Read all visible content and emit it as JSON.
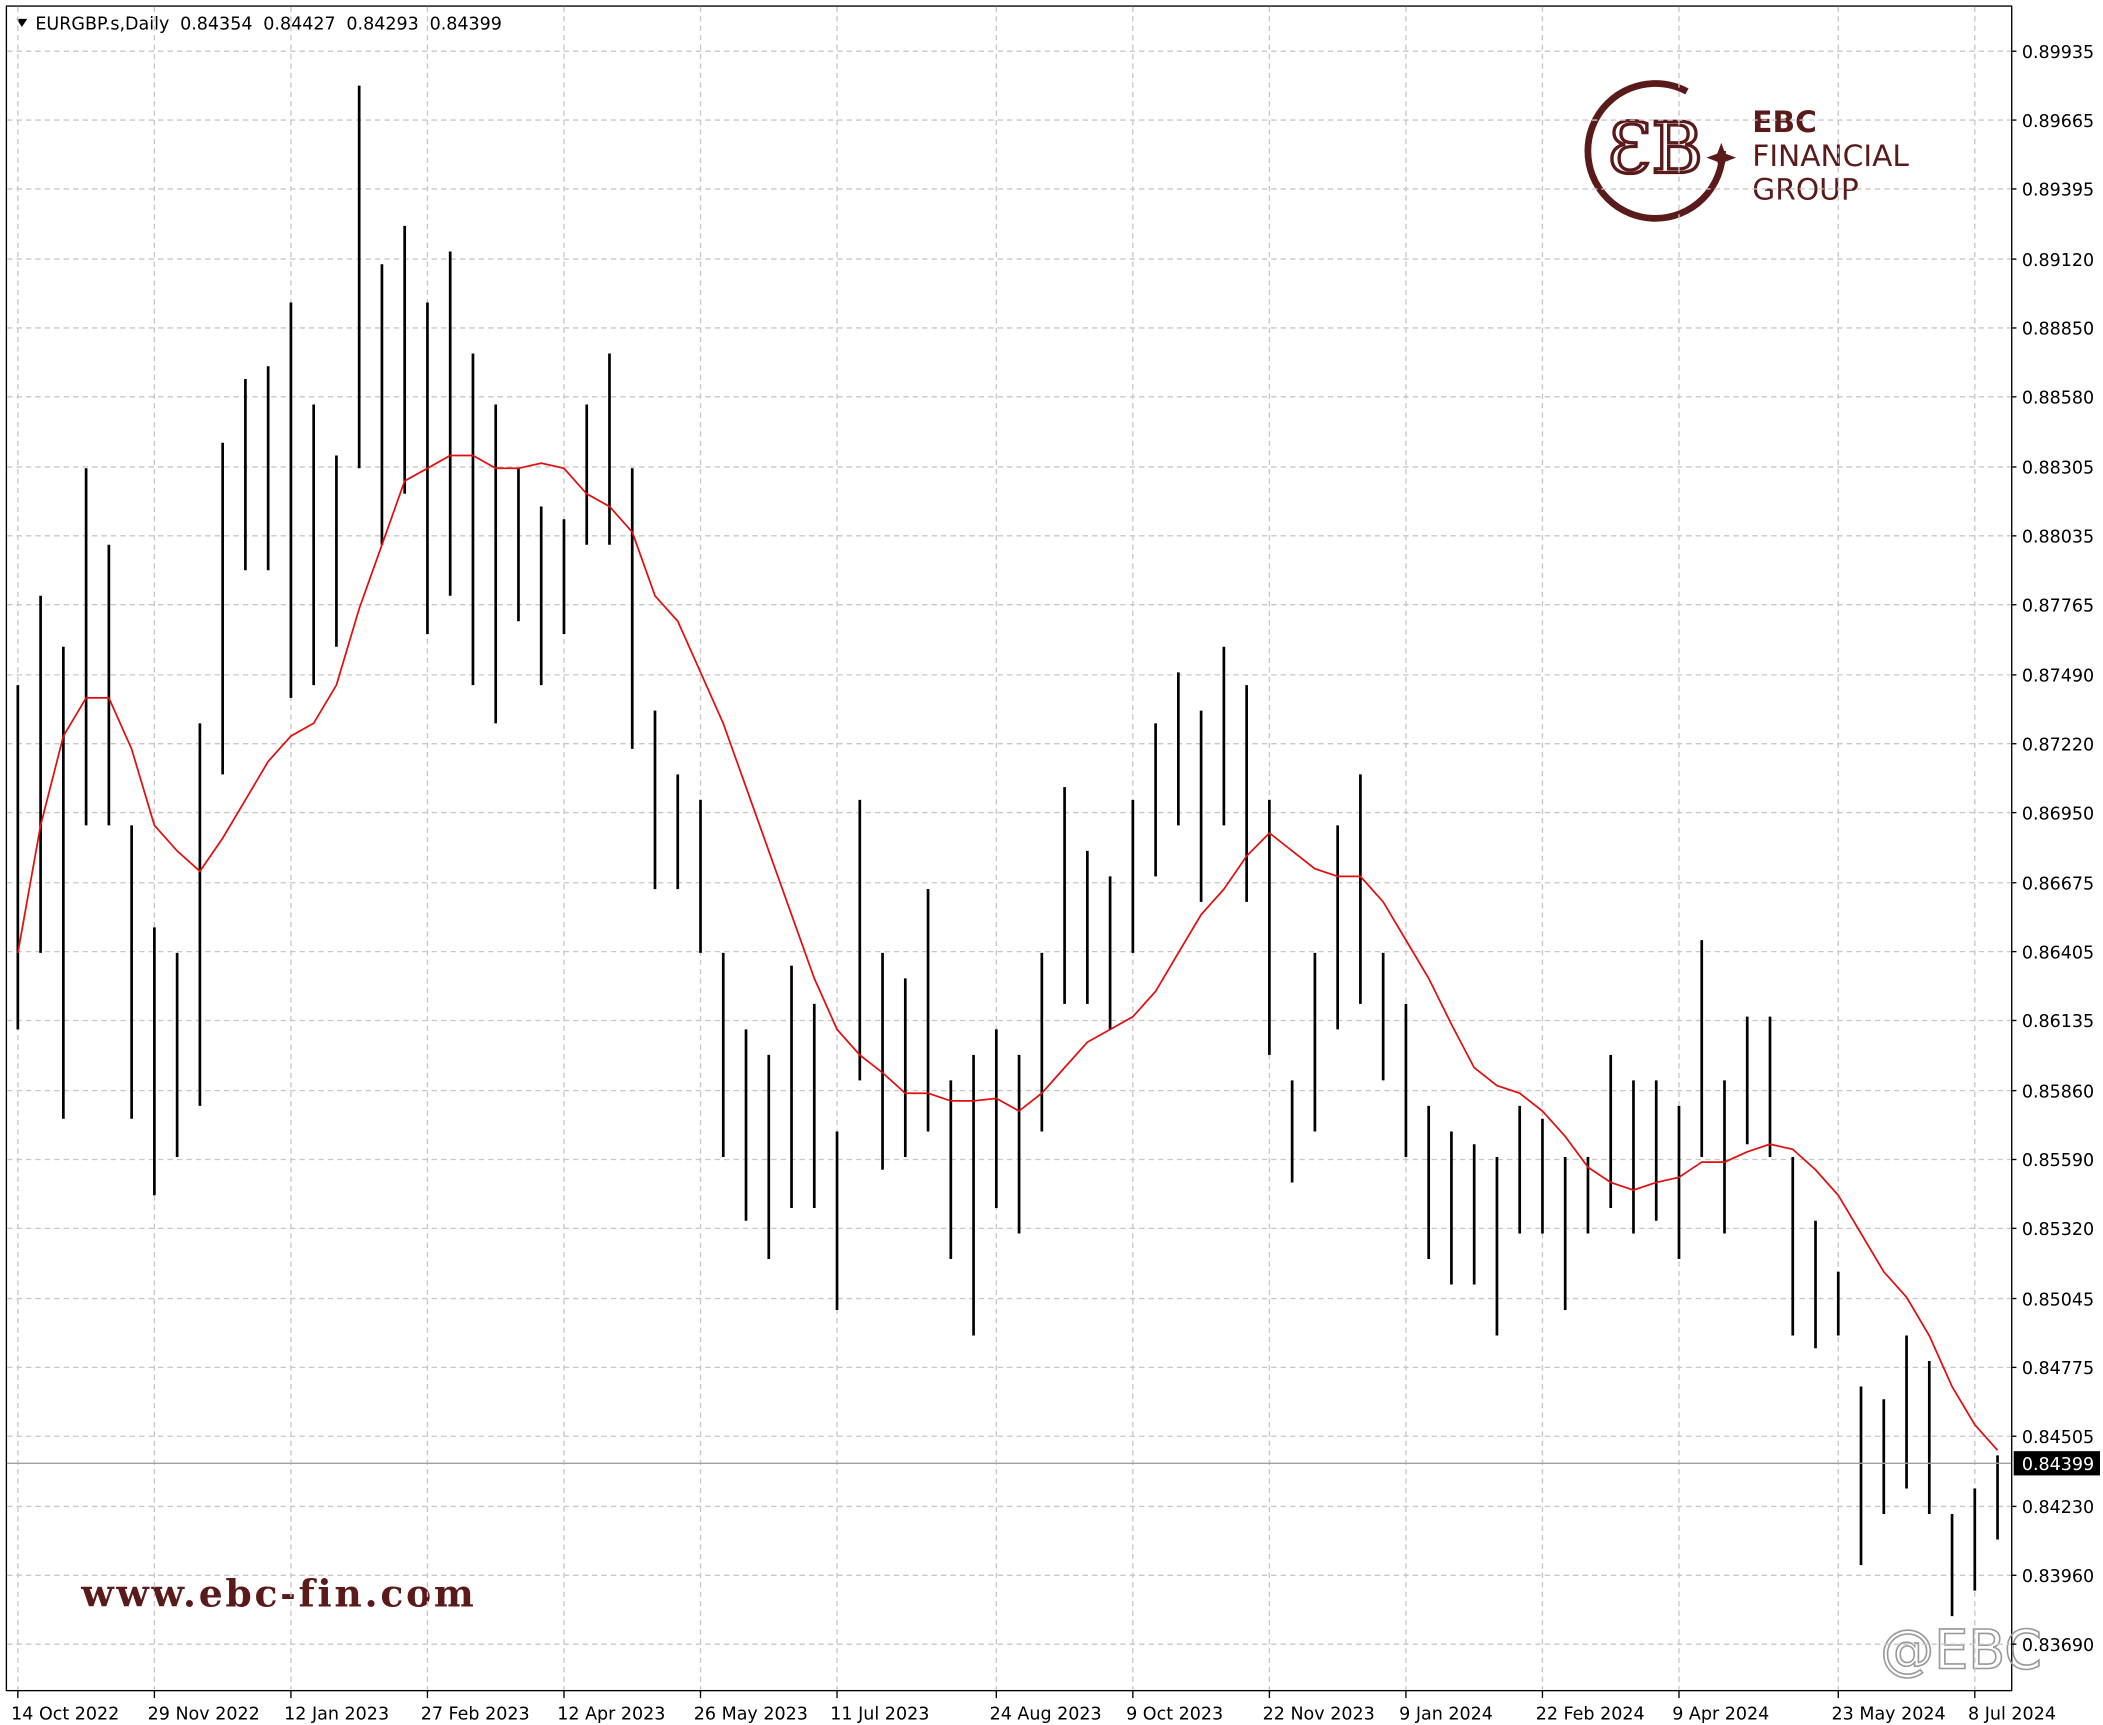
{
  "chart_data": {
    "type": "ohlc",
    "symbol": "EURGBP.s,Daily",
    "header_values": [
      0.84354,
      0.84427,
      0.84293,
      0.84399
    ],
    "last_price": 0.84399,
    "bar_color": "#000000",
    "ma_color": "#e01010",
    "ylim": [
      0.8369,
      0.89935
    ],
    "yticks": [
      0.89935,
      0.89665,
      0.89395,
      {
        "value": 0.8912,
        "label": "0.89120"
      },
      {
        "value": 0.8885,
        "label": "0.88850"
      },
      {
        "value": 0.8858,
        "label": "0.88580"
      },
      0.88305,
      0.88035,
      0.87765,
      {
        "value": 0.8749,
        "label": "0.87490"
      },
      {
        "value": 0.8722,
        "label": "0.87220"
      },
      {
        "value": 0.8695,
        "label": "0.86950"
      },
      0.86675,
      0.86405,
      0.86135,
      {
        "value": 0.8586,
        "label": "0.85860"
      },
      {
        "value": 0.8559,
        "label": "0.85590"
      },
      {
        "value": 0.8532,
        "label": "0.85320"
      },
      0.85045,
      0.84775,
      0.84505,
      {
        "value": 0.8423,
        "label": "0.84230"
      },
      {
        "value": 0.8396,
        "label": "0.83960"
      },
      {
        "value": 0.8369,
        "label": "0.83690"
      }
    ],
    "grid": true,
    "categories": [
      "14 Oct 2022",
      null,
      null,
      null,
      null,
      null,
      "29 Nov 2022",
      null,
      null,
      null,
      null,
      null,
      "12 Jan 2023",
      null,
      null,
      null,
      null,
      null,
      "27 Feb 2023",
      null,
      null,
      null,
      null,
      null,
      "12 Apr 2023",
      null,
      null,
      null,
      null,
      null,
      "26 May 2023",
      null,
      null,
      null,
      null,
      null,
      "11 Jul 2023",
      null,
      null,
      null,
      null,
      null,
      null,
      "24 Aug 2023",
      null,
      null,
      null,
      null,
      null,
      "9 Oct 2023",
      null,
      null,
      null,
      null,
      null,
      "22 Nov 2023",
      null,
      null,
      null,
      null,
      null,
      "9 Jan 2024",
      null,
      null,
      null,
      null,
      null,
      "22 Feb 2024",
      null,
      null,
      null,
      null,
      null,
      "9 Apr 2024",
      null,
      null,
      null,
      null,
      null,
      null,
      "23 May 2024",
      null,
      null,
      null,
      null,
      null,
      "8 Jul 2024",
      null
    ],
    "highs": [
      0.8745,
      0.878,
      0.876,
      0.883,
      0.88,
      0.869,
      0.865,
      0.864,
      0.873,
      0.884,
      0.8865,
      0.887,
      0.8895,
      0.8855,
      0.8835,
      0.898,
      0.891,
      0.8925,
      0.8895,
      0.8915,
      0.8875,
      0.8855,
      0.883,
      0.8815,
      0.881,
      0.8855,
      0.8875,
      0.883,
      0.8735,
      0.871,
      0.87,
      0.864,
      0.861,
      0.86,
      0.8635,
      0.862,
      0.857,
      0.87,
      0.864,
      0.863,
      0.8665,
      0.859,
      0.86,
      0.861,
      0.86,
      0.864,
      0.8705,
      0.868,
      0.867,
      0.87,
      0.873,
      0.875,
      0.8735,
      0.876,
      0.8745,
      0.87,
      0.859,
      0.864,
      0.869,
      0.871,
      0.864,
      0.862,
      0.858,
      0.857,
      0.8565,
      0.856,
      0.858,
      0.8575,
      0.856,
      0.856,
      0.86,
      0.859,
      0.859,
      0.858,
      0.8645,
      0.859,
      0.8615,
      0.8615,
      0.856,
      0.8535,
      0.8515,
      0.847,
      0.8465,
      0.849,
      0.848,
      0.842,
      0.843,
      0.8443
    ],
    "lows": [
      0.861,
      0.864,
      0.8575,
      0.869,
      0.869,
      0.8575,
      0.8545,
      0.856,
      0.858,
      0.871,
      0.879,
      0.879,
      0.874,
      0.8745,
      0.876,
      0.883,
      0.88,
      0.882,
      0.8765,
      0.878,
      0.8745,
      0.873,
      0.877,
      0.8745,
      0.8765,
      0.88,
      0.88,
      0.872,
      0.8665,
      0.8665,
      0.864,
      0.856,
      0.8535,
      0.852,
      0.854,
      0.854,
      0.85,
      0.859,
      0.8555,
      0.856,
      0.857,
      0.852,
      0.849,
      0.854,
      0.853,
      0.857,
      0.862,
      0.862,
      0.861,
      0.864,
      0.867,
      0.869,
      0.866,
      0.869,
      0.866,
      0.86,
      0.855,
      0.857,
      0.861,
      0.862,
      0.859,
      0.856,
      0.852,
      0.851,
      0.851,
      0.849,
      0.853,
      0.853,
      0.85,
      0.853,
      0.854,
      0.853,
      0.8535,
      0.852,
      0.856,
      0.853,
      0.8565,
      0.856,
      0.849,
      0.8485,
      0.849,
      0.84,
      0.842,
      0.843,
      0.842,
      0.838,
      0.839,
      0.841
    ],
    "ma": [
      0.864,
      0.869,
      0.8725,
      0.874,
      0.874,
      0.872,
      0.869,
      0.868,
      0.8672,
      0.8685,
      0.87,
      0.8715,
      0.8725,
      0.873,
      0.8745,
      0.8775,
      0.88,
      0.8825,
      0.883,
      0.8835,
      0.8835,
      0.883,
      0.883,
      0.8832,
      0.883,
      0.882,
      0.8815,
      0.8805,
      0.878,
      0.877,
      0.875,
      0.873,
      0.8705,
      0.868,
      0.8655,
      0.863,
      0.861,
      0.86,
      0.8593,
      0.8585,
      0.8585,
      0.8582,
      0.8582,
      0.8583,
      0.8578,
      0.8585,
      0.8595,
      0.8605,
      0.861,
      0.8615,
      0.8625,
      0.864,
      0.8655,
      0.8665,
      0.8678,
      0.8687,
      0.868,
      0.8673,
      0.867,
      0.867,
      0.866,
      0.8645,
      0.863,
      0.8612,
      0.8595,
      0.8588,
      0.8585,
      0.8578,
      0.8568,
      0.8556,
      0.855,
      0.8547,
      0.855,
      0.8552,
      0.8558,
      0.8558,
      0.8562,
      0.8565,
      0.8563,
      0.8555,
      0.8545,
      0.853,
      0.8515,
      0.8505,
      0.849,
      0.847,
      0.8455,
      0.8445
    ]
  },
  "logo": {
    "brand": "EBC",
    "line1": "FINANCIAL",
    "line2": "GROUP"
  },
  "website": "www.ebc-fin.com",
  "social": "@EBC"
}
